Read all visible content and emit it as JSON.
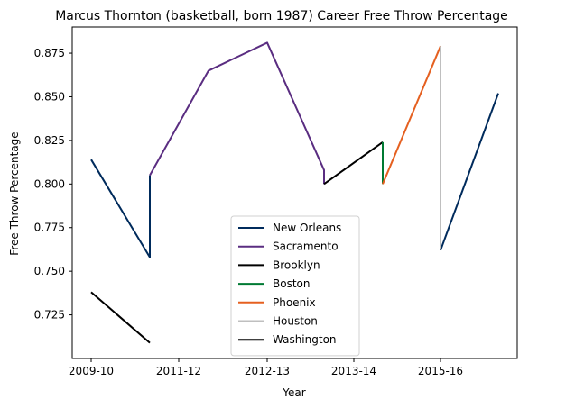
{
  "chart_data": {
    "type": "line",
    "title": "Marcus Thornton (basketball, born 1987) Career Free Throw Percentage",
    "xlabel": "Year",
    "ylabel": "Free Throw Percentage",
    "x_ticks": [
      "2009-10",
      "2011-12",
      "2012-13",
      "2013-14",
      "2015-16"
    ],
    "y_ticks": [
      "0.725",
      "0.750",
      "0.775",
      "0.800",
      "0.825",
      "0.850",
      "0.875"
    ],
    "ylim": [
      0.7,
      0.89
    ],
    "grid": false,
    "legend_position": "lower-center",
    "series": [
      {
        "name": "New Orleans",
        "color": "#002b5c",
        "points": [
          [
            0,
            0.814
          ],
          [
            1,
            0.758
          ],
          [
            1,
            0.805
          ]
        ]
      },
      {
        "name": "Sacramento",
        "color": "#5a2d81",
        "points": [
          [
            1,
            0.805
          ],
          [
            2,
            0.865
          ],
          [
            3,
            0.881
          ],
          [
            4,
            0.808
          ],
          [
            4,
            0.8
          ]
        ]
      },
      {
        "name": "Brooklyn",
        "color": "#000000",
        "points": [
          [
            4,
            0.8
          ],
          [
            5,
            0.824
          ]
        ]
      },
      {
        "name": "Boston",
        "color": "#007a33",
        "points": [
          [
            5,
            0.824
          ],
          [
            5,
            0.8
          ]
        ]
      },
      {
        "name": "Phoenix",
        "color": "#e56020",
        "points": [
          [
            5,
            0.8
          ],
          [
            6,
            0.879
          ]
        ]
      },
      {
        "name": "Houston",
        "color": "#bfbfbf",
        "points": [
          [
            6,
            0.879
          ],
          [
            6,
            0.762
          ]
        ]
      },
      {
        "name": "New Orleans",
        "color": "#002b5c",
        "points": [
          [
            6,
            0.762
          ],
          [
            7,
            0.852
          ]
        ],
        "in_legend": false
      },
      {
        "name": "Washington",
        "color": "#000000",
        "points": [
          [
            0,
            0.738
          ],
          [
            1,
            0.709
          ]
        ]
      }
    ]
  }
}
